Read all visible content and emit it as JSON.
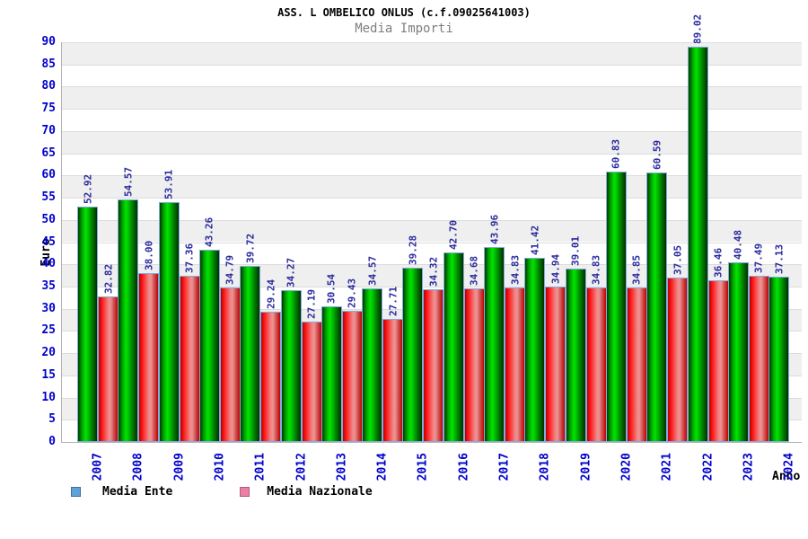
{
  "title": "ASS. L OMBELICO ONLUS (c.f.09025641003)",
  "subtitle": "Media Importi",
  "chart_data": {
    "type": "bar",
    "title": "ASS. L OMBELICO ONLUS (c.f.09025641003)",
    "subtitle": "Media Importi",
    "xlabel": "Anno",
    "ylabel": "Euro",
    "ylim": [
      0,
      90
    ],
    "ytick_step": 5,
    "grid": "horizontal-bands-alternating",
    "legend_position": "bottom-left",
    "categories": [
      "2007",
      "2008",
      "2009",
      "2010",
      "2011",
      "2012",
      "2013",
      "2014",
      "2015",
      "2016",
      "2017",
      "2018",
      "2019",
      "2020",
      "2021",
      "2022",
      "2023",
      "2024"
    ],
    "series": [
      {
        "name": "Media Ente",
        "bar_color": "green",
        "values": [
          52.92,
          54.57,
          53.91,
          43.26,
          39.72,
          34.27,
          30.54,
          34.57,
          39.28,
          42.7,
          43.96,
          41.42,
          39.01,
          60.83,
          60.59,
          89.02,
          40.48,
          37.13
        ],
        "value_labels": [
          "52.92",
          "54.57",
          "53.91",
          "43.26",
          "39.72",
          "34.27",
          "30.54",
          "34.57",
          "39.28",
          "42.70",
          "43.96",
          "41.42",
          "39.01",
          "60.83",
          "60.59",
          "89.02",
          "40.48",
          "37.13"
        ]
      },
      {
        "name": "Media Nazionale",
        "bar_color": "red",
        "values": [
          32.82,
          38.0,
          37.36,
          34.79,
          29.24,
          27.19,
          29.43,
          27.71,
          34.32,
          34.68,
          34.83,
          34.94,
          34.83,
          34.85,
          37.05,
          36.46,
          37.49,
          null
        ],
        "value_labels": [
          "32.82",
          "38.00",
          "37.36",
          "34.79",
          "29.24",
          "27.19",
          "29.43",
          "27.71",
          "34.32",
          "34.68",
          "34.83",
          "34.94",
          "34.83",
          "34.85",
          "37.05",
          "36.46",
          "37.49",
          null
        ]
      }
    ]
  },
  "colors": {
    "bar_green_bright": "#00E400",
    "bar_green_edge": "#003B00",
    "bar_red_bright": "#FF1A1A",
    "bar_red_center": "#EE9393",
    "bar_border_blue": "#82ACDF",
    "value_label_navy": "#2A2A9E",
    "axis_tick_blue": "#0000CC",
    "legend_ente_fill": "#62A0D8",
    "legend_ente_border": "#3E6FA8",
    "legend_nazionale_fill": "#E97FA5",
    "legend_nazionale_border": "#BF5580",
    "band_gray": "#EFEFEF",
    "gridline_gray": "#DCDCDC",
    "axis_line_gray": "#B3B3B3",
    "subtitle_gray": "#7F7F7F"
  }
}
